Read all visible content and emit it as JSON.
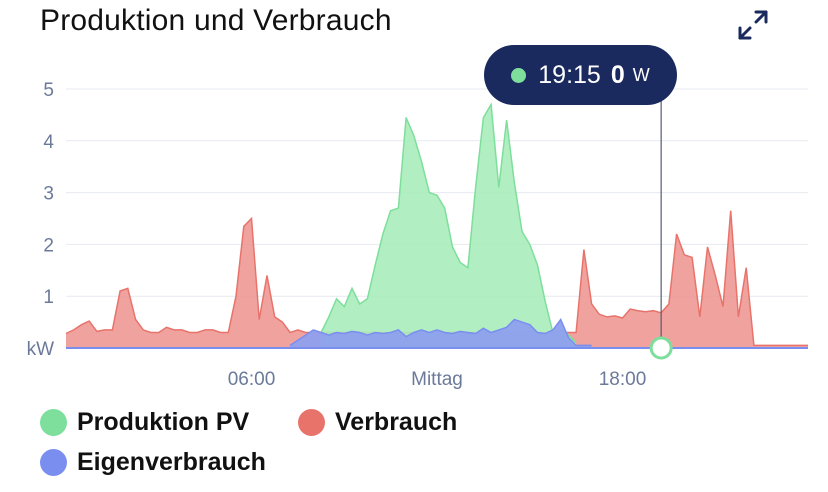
{
  "title": "Produktion und Verbrauch",
  "expand_icon": "expand-icon",
  "tooltip": {
    "time": "19:15",
    "value": "0",
    "unit": "W",
    "color": "#7ddf9b"
  },
  "colors": {
    "pv": "#7ddf9b",
    "pv_fill": "#a8ecbb",
    "verbrauch": "#e8736b",
    "verbrauch_fill": "#ee9893",
    "eigen": "#7a8ef0",
    "eigen_fill": "#8ea0ee",
    "axis_text": "#6b7a99",
    "tooltip_bg": "#1a2a5e"
  },
  "legend": [
    {
      "label": "Produktion PV",
      "color": "#7ddf9b"
    },
    {
      "label": "Verbrauch",
      "color": "#e8736b"
    },
    {
      "label": "Eigenverbrauch",
      "color": "#7a8ef0"
    }
  ],
  "chart_data": {
    "type": "area",
    "title": "Produktion und Verbrauch",
    "ylabel": "kW",
    "xlabel": "",
    "ylim": [
      0,
      5
    ],
    "xlim": [
      0,
      24
    ],
    "yticks": [
      1,
      2,
      3,
      4,
      5
    ],
    "y_unit_label": "kW",
    "xticks": [
      {
        "hour": 6,
        "label": "06:00"
      },
      {
        "hour": 12,
        "label": "Mittag"
      },
      {
        "hour": 18,
        "label": "18:00"
      }
    ],
    "grid": true,
    "legend_position": "bottom",
    "cursor_hour": 19.25,
    "series": [
      {
        "name": "Verbrauch",
        "color": "#e8736b",
        "x": [
          0,
          0.25,
          0.5,
          0.75,
          1,
          1.25,
          1.5,
          1.75,
          2,
          2.25,
          2.5,
          2.75,
          3,
          3.25,
          3.5,
          3.75,
          4,
          4.25,
          4.5,
          4.75,
          5,
          5.25,
          5.5,
          5.75,
          6,
          6.25,
          6.5,
          6.75,
          7,
          7.25,
          7.5,
          7.75,
          8,
          8.25,
          8.5,
          16.5,
          16.75,
          17,
          17.25,
          17.5,
          17.75,
          18,
          18.25,
          18.5,
          18.75,
          19,
          19.25,
          19.5,
          19.75,
          20,
          20.25,
          20.5,
          20.75,
          21,
          21.25,
          21.5,
          21.75,
          22,
          22.25,
          22.5,
          22.75,
          23,
          23.25,
          23.5,
          24
        ],
        "values": [
          0.28,
          0.35,
          0.45,
          0.52,
          0.32,
          0.35,
          0.35,
          1.1,
          1.15,
          0.55,
          0.35,
          0.3,
          0.3,
          0.4,
          0.35,
          0.35,
          0.3,
          0.3,
          0.35,
          0.35,
          0.3,
          0.3,
          1.0,
          2.35,
          2.5,
          0.55,
          1.4,
          0.6,
          0.5,
          0.3,
          0.35,
          0.3,
          0.3,
          0.3,
          0.3,
          0.3,
          1.9,
          0.85,
          0.65,
          0.6,
          0.62,
          0.58,
          0.75,
          0.72,
          0.7,
          0.72,
          0.68,
          0.85,
          2.2,
          1.8,
          1.75,
          0.6,
          1.95,
          1.4,
          0.8,
          2.65,
          0.6,
          1.55,
          0.05,
          0.05,
          0.05,
          0.05,
          0.05,
          0.05,
          0.05
        ]
      },
      {
        "name": "Produktion PV",
        "color": "#7ddf9b",
        "x": [
          8.25,
          8.5,
          8.75,
          9,
          9.25,
          9.5,
          9.75,
          10,
          10.25,
          10.5,
          10.75,
          11,
          11.25,
          11.5,
          11.75,
          12,
          12.25,
          12.5,
          12.75,
          13,
          13.25,
          13.5,
          13.75,
          14,
          14.25,
          14.5,
          14.75,
          15,
          15.25,
          15.5,
          15.75,
          16,
          16.25,
          16.5
        ],
        "values": [
          0.3,
          0.6,
          0.95,
          0.8,
          1.15,
          0.85,
          0.95,
          1.6,
          2.2,
          2.65,
          2.7,
          4.45,
          4.1,
          3.6,
          3.0,
          2.95,
          2.7,
          1.95,
          1.65,
          1.55,
          3.1,
          4.45,
          4.7,
          3.1,
          4.4,
          3.2,
          2.25,
          2.0,
          1.6,
          0.9,
          0.3,
          0.35,
          0.25,
          0.1
        ]
      },
      {
        "name": "Eigenverbrauch",
        "color": "#7a8ef0",
        "x": [
          7.25,
          7.5,
          7.75,
          8,
          8.25,
          8.5,
          8.75,
          9,
          9.25,
          9.5,
          9.75,
          10,
          10.25,
          10.5,
          10.75,
          11,
          11.25,
          11.5,
          11.75,
          12,
          12.25,
          12.5,
          12.75,
          13,
          13.25,
          13.5,
          13.75,
          14,
          14.25,
          14.5,
          14.75,
          15,
          15.25,
          15.5,
          15.75,
          16,
          16.25,
          16.5,
          16.75,
          17
        ],
        "values": [
          0.05,
          0.15,
          0.25,
          0.35,
          0.3,
          0.25,
          0.3,
          0.28,
          0.32,
          0.3,
          0.25,
          0.3,
          0.28,
          0.3,
          0.35,
          0.22,
          0.3,
          0.35,
          0.3,
          0.35,
          0.3,
          0.28,
          0.32,
          0.3,
          0.28,
          0.38,
          0.3,
          0.35,
          0.4,
          0.55,
          0.5,
          0.45,
          0.3,
          0.28,
          0.35,
          0.55,
          0.2,
          0.05,
          0.05,
          0.05
        ]
      }
    ]
  }
}
